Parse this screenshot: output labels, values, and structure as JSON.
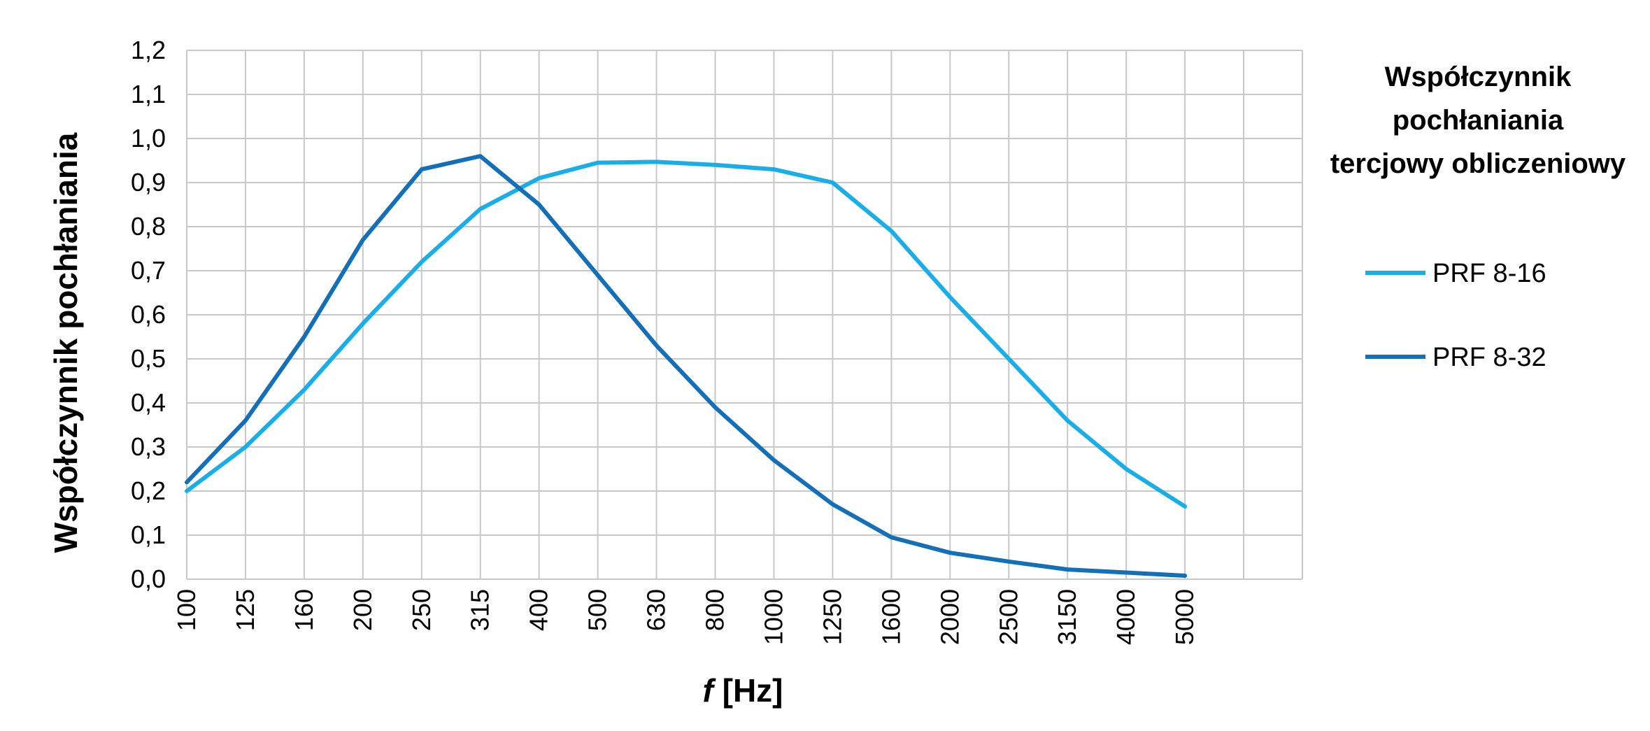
{
  "chart_data": {
    "type": "line",
    "title": "",
    "xlabel_italic": "f",
    "xlabel_rest": " [Hz]",
    "ylabel": "Współczynnik pochłaniania",
    "categories": [
      "100",
      "125",
      "160",
      "200",
      "250",
      "315",
      "400",
      "500",
      "630",
      "800",
      "1000",
      "1250",
      "1600",
      "2000",
      "2500",
      "3150",
      "4000",
      "5000"
    ],
    "ylim": [
      0,
      1.2
    ],
    "yticks": [
      "0,0",
      "0,1",
      "0,2",
      "0,3",
      "0,4",
      "0,5",
      "0,6",
      "0,7",
      "0,8",
      "0,9",
      "1,0",
      "1,1",
      "1,2"
    ],
    "grid": true,
    "legend": {
      "title_lines": [
        "Współczynnik",
        "pochłaniania",
        "tercjowy obliczeniowy"
      ],
      "placement": "right"
    },
    "series": [
      {
        "name": "PRF 8-16",
        "color": "#1aaee8",
        "values": [
          0.2,
          0.3,
          0.43,
          0.58,
          0.72,
          0.84,
          0.91,
          0.945,
          0.947,
          0.94,
          0.93,
          0.9,
          0.79,
          0.64,
          0.5,
          0.36,
          0.25,
          0.165
        ]
      },
      {
        "name": "PRF 8-32",
        "color": "#1370b8",
        "values": [
          0.22,
          0.36,
          0.55,
          0.77,
          0.93,
          0.96,
          0.85,
          0.69,
          0.53,
          0.39,
          0.27,
          0.17,
          0.095,
          0.06,
          0.04,
          0.022,
          0.015,
          0.008
        ]
      }
    ]
  }
}
